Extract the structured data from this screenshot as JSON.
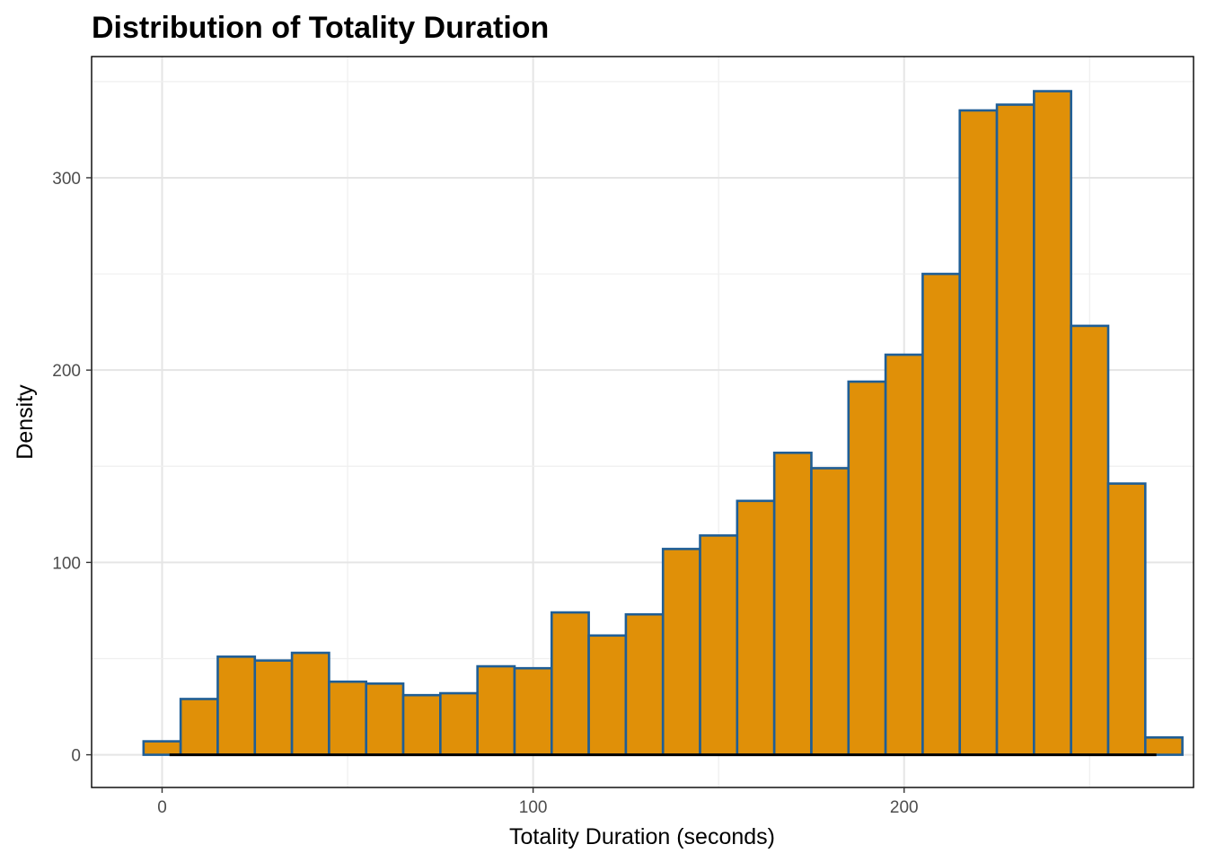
{
  "chart_data": {
    "type": "bar",
    "title": "Distribution of Totality Duration",
    "xlabel": "Totality Duration (seconds)",
    "ylabel": "Density",
    "bin_width": 10,
    "bin_centers": [
      0,
      10,
      20,
      30,
      40,
      50,
      60,
      70,
      80,
      90,
      100,
      110,
      120,
      130,
      140,
      150,
      160,
      170,
      180,
      190,
      200,
      210,
      220,
      230,
      240,
      250,
      260,
      270
    ],
    "values": [
      7,
      29,
      51,
      49,
      53,
      38,
      37,
      31,
      32,
      46,
      45,
      74,
      62,
      73,
      107,
      114,
      132,
      157,
      149,
      194,
      208,
      250,
      335,
      338,
      345,
      223,
      141,
      9
    ],
    "density_curve": {
      "x_start": 2,
      "x_end": 268,
      "y": 0
    },
    "xlim": [
      -19,
      278
    ],
    "ylim": [
      -17,
      363
    ],
    "x_ticks": [
      0,
      100,
      200
    ],
    "y_ticks": [
      0,
      100,
      200,
      300
    ],
    "x_tick_labels": [
      "0",
      "100",
      "200"
    ],
    "y_tick_labels": [
      "0",
      "100",
      "200",
      "300"
    ],
    "grid": true,
    "legend": "none",
    "colors": {
      "bar_fill": "#E09008",
      "bar_outline": "#1F5E96",
      "density_line": "#000000",
      "panel_border": "#000000",
      "grid": "#E5E5E5"
    }
  }
}
